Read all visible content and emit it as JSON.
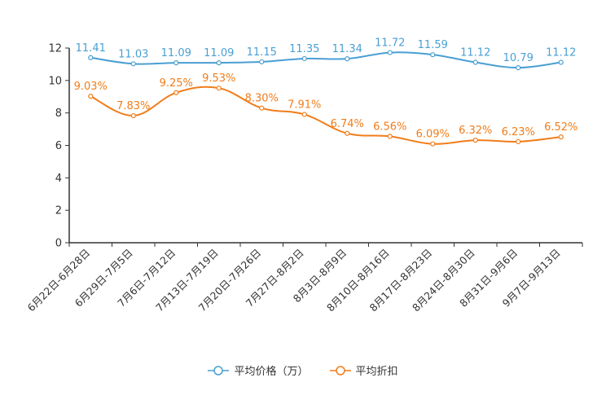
{
  "chart_data": {
    "type": "line",
    "categories": [
      "6月22日-6月28日",
      "6月29日-7月5日",
      "7月6日-7月12日",
      "7月13日-7月19日",
      "7月20日-7月26日",
      "7月27日-8月2日",
      "8月3日-8月9日",
      "8月10日-8月16日",
      "8月17日-8月23日",
      "8月24日-8月30日",
      "8月31日-9月6日",
      "9月7日-9月13日"
    ],
    "ylim": [
      0,
      12
    ],
    "yticks": [
      0,
      2,
      4,
      6,
      8,
      10,
      12
    ],
    "grid": false,
    "legend_position": "bottom-center",
    "series": [
      {
        "name": "平均价格（万）",
        "color": "#4a9fd3",
        "values": [
          11.41,
          11.03,
          11.09,
          11.09,
          11.15,
          11.35,
          11.34,
          11.72,
          11.59,
          11.12,
          10.79,
          11.12
        ],
        "labels": [
          "11.41",
          "11.03",
          "11.09",
          "11.09",
          "11.15",
          "11.35",
          "11.34",
          "11.72",
          "11.59",
          "11.12",
          "10.79",
          "11.12"
        ]
      },
      {
        "name": "平均折扣",
        "color": "#f07d1a",
        "values": [
          9.03,
          7.83,
          9.25,
          9.53,
          8.3,
          7.91,
          6.74,
          6.56,
          6.09,
          6.32,
          6.23,
          6.52
        ],
        "labels": [
          "9.03%",
          "7.83%",
          "9.25%",
          "9.53%",
          "8.30%",
          "7.91%",
          "6.74%",
          "6.56%",
          "6.09%",
          "6.32%",
          "6.23%",
          "6.52%"
        ]
      }
    ]
  }
}
